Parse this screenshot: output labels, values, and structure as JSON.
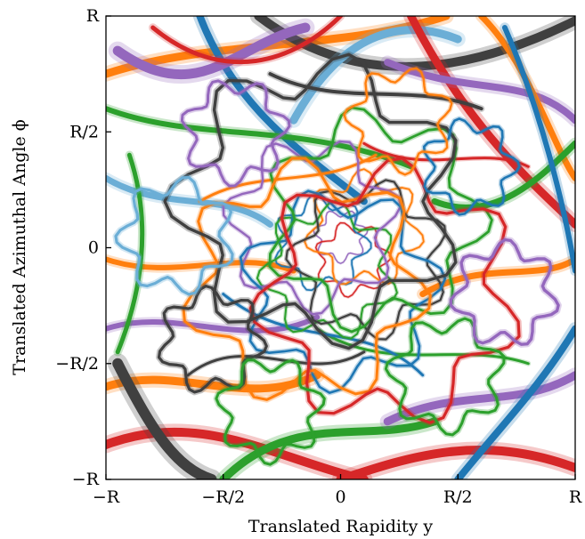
{
  "chart_data": {
    "type": "line",
    "title": "",
    "xlabel": "Translated Rapidity y",
    "ylabel": "Translated Azimuthal Angle ϕ",
    "xlim": [
      -1,
      1
    ],
    "ylim": [
      -1,
      1
    ],
    "grid": false,
    "legend": "none",
    "x_ticks": [
      {
        "value": -1,
        "label": "−R"
      },
      {
        "value": -0.5,
        "label": "−R/2"
      },
      {
        "value": 0,
        "label": "0"
      },
      {
        "value": 0.5,
        "label": "R/2"
      },
      {
        "value": 1,
        "label": "R"
      }
    ],
    "y_ticks": [
      {
        "value": -1,
        "label": "−R"
      },
      {
        "value": -0.5,
        "label": "−R/2"
      },
      {
        "value": 0,
        "label": "0"
      },
      {
        "value": 0.5,
        "label": "R/2"
      },
      {
        "value": 1,
        "label": "R"
      }
    ],
    "palette": [
      "#1f77b4",
      "#ff7f0e",
      "#2ca02c",
      "#d62728",
      "#9467bd",
      "#404040",
      "#6baed6",
      "#fd8d3c"
    ],
    "closed_loops": [
      {
        "cx": 0.0,
        "cy": 0.05,
        "r": 0.1,
        "color": "#9467bd",
        "width": 1.2
      },
      {
        "cx": 0.05,
        "cy": -0.05,
        "r": 0.14,
        "color": "#d62728",
        "width": 1.4
      },
      {
        "cx": -0.08,
        "cy": 0.02,
        "r": 0.18,
        "color": "#1f77b4",
        "width": 1.6
      },
      {
        "cx": 0.1,
        "cy": 0.08,
        "r": 0.22,
        "color": "#ff7f0e",
        "width": 1.8
      },
      {
        "cx": -0.05,
        "cy": -0.1,
        "r": 0.26,
        "color": "#2ca02c",
        "width": 2.0
      },
      {
        "cx": 0.12,
        "cy": -0.05,
        "r": 0.3,
        "color": "#404040",
        "width": 2.2
      },
      {
        "cx": -0.12,
        "cy": 0.1,
        "r": 0.33,
        "color": "#9467bd",
        "width": 2.4
      },
      {
        "cx": 0.0,
        "cy": -0.18,
        "r": 0.38,
        "color": "#1f77b4",
        "width": 2.6
      },
      {
        "cx": 0.15,
        "cy": 0.12,
        "r": 0.42,
        "color": "#2ca02c",
        "width": 2.8
      },
      {
        "cx": -0.15,
        "cy": -0.15,
        "r": 0.46,
        "color": "#ff7f0e",
        "width": 3.0
      },
      {
        "cx": 0.2,
        "cy": -0.2,
        "r": 0.5,
        "color": "#d62728",
        "width": 3.2
      },
      {
        "cx": -0.1,
        "cy": 0.2,
        "r": 0.55,
        "color": "#404040",
        "width": 3.4
      },
      {
        "cx": 0.45,
        "cy": -0.55,
        "r": 0.22,
        "color": "#2ca02c",
        "width": 3.0
      },
      {
        "cx": -0.45,
        "cy": 0.5,
        "r": 0.2,
        "color": "#9467bd",
        "width": 3.0
      },
      {
        "cx": 0.55,
        "cy": 0.35,
        "r": 0.18,
        "color": "#1f77b4",
        "width": 2.6
      },
      {
        "cx": -0.55,
        "cy": -0.4,
        "r": 0.2,
        "color": "#404040",
        "width": 3.2
      },
      {
        "cx": 0.7,
        "cy": -0.2,
        "r": 0.2,
        "color": "#9467bd",
        "width": 3.4
      },
      {
        "cx": -0.7,
        "cy": 0.05,
        "r": 0.22,
        "color": "#6baed6",
        "width": 3.2
      },
      {
        "cx": 0.25,
        "cy": 0.55,
        "r": 0.2,
        "color": "#ff7f0e",
        "width": 2.4
      },
      {
        "cx": -0.3,
        "cy": -0.7,
        "r": 0.2,
        "color": "#2ca02c",
        "width": 3.0
      }
    ],
    "strands": [
      {
        "points": [
          [
            -1.0,
            0.75
          ],
          [
            -0.55,
            0.9
          ],
          [
            0.0,
            0.85
          ],
          [
            0.45,
            1.0
          ]
        ],
        "color": "#ff7f0e",
        "width": 9
      },
      {
        "points": [
          [
            -0.35,
            1.0
          ],
          [
            0.1,
            0.65
          ],
          [
            0.6,
            0.78
          ],
          [
            1.0,
            0.98
          ]
        ],
        "color": "#404040",
        "width": 10
      },
      {
        "points": [
          [
            -0.2,
            0.55
          ],
          [
            0.0,
            0.92
          ],
          [
            0.25,
            1.0
          ],
          [
            0.5,
            0.9
          ]
        ],
        "color": "#6baed6",
        "width": 9
      },
      {
        "points": [
          [
            -0.6,
            1.0
          ],
          [
            -0.45,
            0.6
          ],
          [
            -0.15,
            0.4
          ],
          [
            0.1,
            0.2
          ]
        ],
        "color": "#1f77b4",
        "width": 8
      },
      {
        "points": [
          [
            0.3,
            1.0
          ],
          [
            0.55,
            0.5
          ],
          [
            0.85,
            0.25
          ],
          [
            1.0,
            0.1
          ]
        ],
        "color": "#d62728",
        "width": 9
      },
      {
        "points": [
          [
            -0.95,
            0.85
          ],
          [
            -0.6,
            0.6
          ],
          [
            -0.45,
            0.88
          ],
          [
            -0.15,
            0.95
          ]
        ],
        "color": "#9467bd",
        "width": 11
      },
      {
        "points": [
          [
            -1.0,
            0.6
          ],
          [
            -0.6,
            0.45
          ],
          [
            -0.2,
            0.55
          ],
          [
            0.3,
            0.35
          ]
        ],
        "color": "#2ca02c",
        "width": 6
      },
      {
        "points": [
          [
            0.2,
            0.8
          ],
          [
            0.55,
            0.65
          ],
          [
            0.8,
            0.75
          ],
          [
            1.0,
            0.55
          ]
        ],
        "color": "#9467bd",
        "width": 8
      },
      {
        "points": [
          [
            0.6,
            1.0
          ],
          [
            0.8,
            0.8
          ],
          [
            0.9,
            0.45
          ],
          [
            1.0,
            0.3
          ]
        ],
        "color": "#ff7f0e",
        "width": 7
      },
      {
        "points": [
          [
            -1.0,
            0.3
          ],
          [
            -0.75,
            0.15
          ],
          [
            -0.5,
            0.25
          ],
          [
            -0.3,
            0.1
          ]
        ],
        "color": "#6baed6",
        "width": 7
      },
      {
        "points": [
          [
            -1.0,
            -0.05
          ],
          [
            -0.7,
            -0.15
          ],
          [
            -0.45,
            0.0
          ],
          [
            -0.2,
            -0.1
          ]
        ],
        "color": "#ff7f0e",
        "width": 6
      },
      {
        "points": [
          [
            -1.0,
            -0.35
          ],
          [
            -0.7,
            -0.25
          ],
          [
            -0.4,
            -0.45
          ],
          [
            -0.1,
            -0.3
          ]
        ],
        "color": "#9467bd",
        "width": 6
      },
      {
        "points": [
          [
            -1.0,
            -0.6
          ],
          [
            -0.7,
            -0.5
          ],
          [
            -0.4,
            -0.7
          ],
          [
            -0.1,
            -0.55
          ]
        ],
        "color": "#ff7f0e",
        "width": 9
      },
      {
        "points": [
          [
            -1.0,
            -0.85
          ],
          [
            -0.6,
            -0.7
          ],
          [
            -0.3,
            -0.9
          ],
          [
            0.1,
            -1.0
          ]
        ],
        "color": "#d62728",
        "width": 10
      },
      {
        "points": [
          [
            -0.95,
            -0.5
          ],
          [
            -0.8,
            -0.8
          ],
          [
            -0.7,
            -0.95
          ],
          [
            -0.55,
            -1.0
          ]
        ],
        "color": "#404040",
        "width": 12
      },
      {
        "points": [
          [
            -0.5,
            -1.0
          ],
          [
            -0.2,
            -0.7
          ],
          [
            0.1,
            -0.85
          ],
          [
            0.4,
            -0.75
          ]
        ],
        "color": "#2ca02c",
        "width": 9
      },
      {
        "points": [
          [
            0.0,
            -1.0
          ],
          [
            0.3,
            -0.9
          ],
          [
            0.6,
            -0.8
          ],
          [
            1.0,
            -0.95
          ]
        ],
        "color": "#d62728",
        "width": 10
      },
      {
        "points": [
          [
            0.2,
            -0.75
          ],
          [
            0.5,
            -0.6
          ],
          [
            0.75,
            -0.7
          ],
          [
            1.0,
            -0.55
          ]
        ],
        "color": "#9467bd",
        "width": 9
      },
      {
        "points": [
          [
            0.5,
            -1.0
          ],
          [
            0.7,
            -0.75
          ],
          [
            0.85,
            -0.6
          ],
          [
            1.0,
            -0.35
          ]
        ],
        "color": "#1f77b4",
        "width": 8
      },
      {
        "points": [
          [
            0.35,
            -0.2
          ],
          [
            0.6,
            -0.05
          ],
          [
            0.85,
            -0.15
          ],
          [
            1.0,
            -0.05
          ]
        ],
        "color": "#ff7f0e",
        "width": 7
      },
      {
        "points": [
          [
            0.4,
            0.2
          ],
          [
            0.65,
            0.1
          ],
          [
            0.85,
            0.3
          ],
          [
            1.0,
            0.45
          ]
        ],
        "color": "#2ca02c",
        "width": 7
      },
      {
        "points": [
          [
            -0.3,
            0.75
          ],
          [
            0.0,
            0.6
          ],
          [
            0.3,
            0.72
          ],
          [
            0.6,
            0.6
          ]
        ],
        "color": "#404040",
        "width": 4
      },
      {
        "points": [
          [
            -0.8,
            0.95
          ],
          [
            -0.5,
            0.7
          ],
          [
            -0.2,
            0.8
          ],
          [
            0.0,
            1.0
          ]
        ],
        "color": "#d62728",
        "width": 5
      },
      {
        "points": [
          [
            0.7,
            0.95
          ],
          [
            0.85,
            0.6
          ],
          [
            0.95,
            0.2
          ],
          [
            1.0,
            -0.1
          ]
        ],
        "color": "#1f77b4",
        "width": 6
      },
      {
        "points": [
          [
            -0.9,
            0.4
          ],
          [
            -0.8,
            0.1
          ],
          [
            -0.85,
            -0.2
          ],
          [
            -0.95,
            -0.45
          ]
        ],
        "color": "#2ca02c",
        "width": 5
      },
      {
        "points": [
          [
            -0.1,
            -0.35
          ],
          [
            0.2,
            -0.55
          ],
          [
            0.5,
            -0.4
          ],
          [
            0.8,
            -0.5
          ]
        ],
        "color": "#2ca02c",
        "width": 3
      },
      {
        "points": [
          [
            -0.5,
            -0.2
          ],
          [
            -0.2,
            -0.45
          ],
          [
            0.1,
            -0.3
          ],
          [
            0.35,
            -0.55
          ]
        ],
        "color": "#1f77b4",
        "width": 3
      },
      {
        "points": [
          [
            0.1,
            0.45
          ],
          [
            0.35,
            0.3
          ],
          [
            0.6,
            0.45
          ],
          [
            0.8,
            0.35
          ]
        ],
        "color": "#d62728",
        "width": 3
      },
      {
        "points": [
          [
            -0.6,
            0.2
          ],
          [
            -0.35,
            0.35
          ],
          [
            -0.1,
            0.25
          ],
          [
            0.15,
            0.4
          ]
        ],
        "color": "#ff7f0e",
        "width": 3
      },
      {
        "points": [
          [
            -0.65,
            -0.55
          ],
          [
            -0.4,
            -0.35
          ],
          [
            -0.15,
            -0.6
          ],
          [
            0.1,
            -0.45
          ]
        ],
        "color": "#404040",
        "width": 3
      }
    ]
  }
}
